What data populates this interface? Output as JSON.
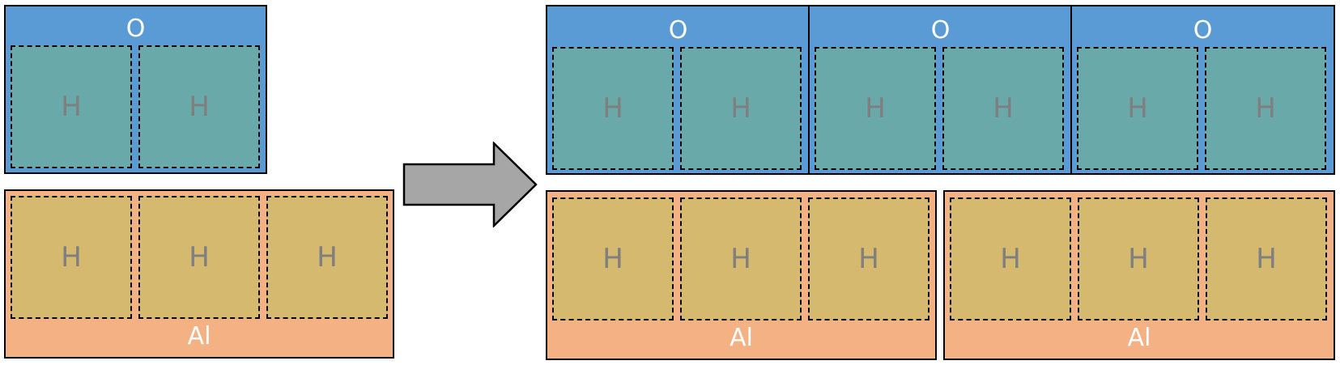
{
  "colors": {
    "oxygen_layer": "#5b9bd5",
    "aluminum_layer": "#f4b183",
    "h_cell_oxygen": "#6aa9aa",
    "h_cell_aluminum": "#d4b96e",
    "h_text": "#7f7f7f",
    "label_text": "#ffffff",
    "arrow": "#a6a6a6"
  },
  "labels": {
    "oxygen": "O",
    "aluminum": "Al",
    "hydrogen": "H"
  }
}
